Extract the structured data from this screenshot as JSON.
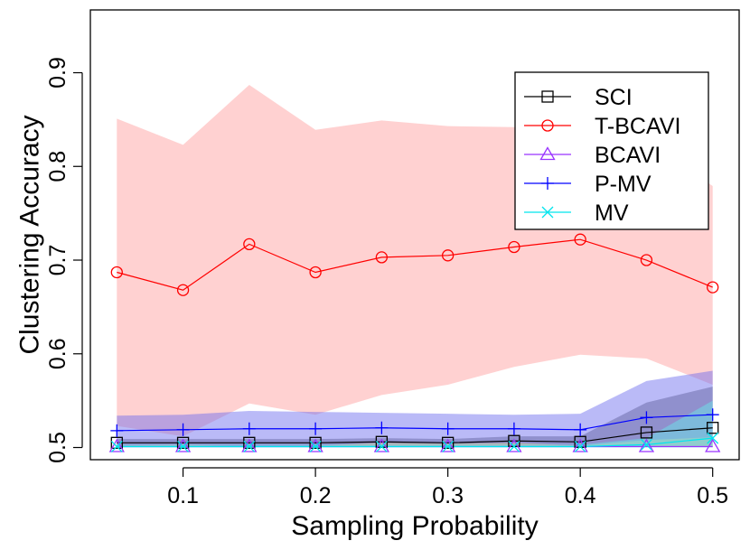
{
  "chart_data": {
    "type": "line",
    "xlabel": "Sampling Probability",
    "ylabel": "Clustering Accuracy",
    "xlim": [
      0.03,
      0.52
    ],
    "ylim": [
      0.487,
      0.967
    ],
    "xticks": [
      0.1,
      0.2,
      0.3,
      0.4,
      0.5
    ],
    "xtick_labels": [
      "0.1",
      "0.2",
      "0.3",
      "0.4",
      "0.5"
    ],
    "yticks": [
      0.5,
      0.6,
      0.7,
      0.8,
      0.9
    ],
    "ytick_labels": [
      "0.5",
      "0.6",
      "0.7",
      "0.8",
      "0.9"
    ],
    "legend_position": "top-right",
    "x": [
      0.05,
      0.1,
      0.15,
      0.2,
      0.25,
      0.3,
      0.35,
      0.4,
      0.45,
      0.5
    ],
    "series": [
      {
        "name": "SCI",
        "color": "#000000",
        "marker": "square",
        "values": [
          0.505,
          0.505,
          0.505,
          0.505,
          0.506,
          0.505,
          0.507,
          0.506,
          0.516,
          0.521
        ],
        "band_upper": [
          0.509,
          0.509,
          0.509,
          0.509,
          0.51,
          0.509,
          0.512,
          0.512,
          0.548,
          0.565
        ],
        "band_lower": [
          0.501,
          0.501,
          0.501,
          0.501,
          0.501,
          0.501,
          0.501,
          0.501,
          0.501,
          0.501
        ],
        "band_color": "#555555"
      },
      {
        "name": "T-BCAVI",
        "color": "#ff0000",
        "marker": "circle",
        "values": [
          0.687,
          0.668,
          0.717,
          0.687,
          0.703,
          0.705,
          0.714,
          0.722,
          0.7,
          0.671
        ],
        "band_upper": [
          0.851,
          0.823,
          0.887,
          0.839,
          0.849,
          0.843,
          0.842,
          0.842,
          0.828,
          0.779
        ],
        "band_lower": [
          0.523,
          0.512,
          0.547,
          0.535,
          0.556,
          0.567,
          0.586,
          0.599,
          0.595,
          0.567
        ],
        "band_color": "#ff9999"
      },
      {
        "name": "BCAVI",
        "color": "#9933ff",
        "marker": "triangle",
        "values": [
          0.501,
          0.501,
          0.501,
          0.501,
          0.501,
          0.501,
          0.501,
          0.501,
          0.501,
          0.501
        ],
        "band_upper": null,
        "band_lower": null,
        "band_color": "#9933ff"
      },
      {
        "name": "P-MV",
        "color": "#0000ff",
        "marker": "plus",
        "values": [
          0.518,
          0.519,
          0.52,
          0.52,
          0.521,
          0.52,
          0.52,
          0.519,
          0.532,
          0.535
        ],
        "band_upper": [
          0.534,
          0.535,
          0.539,
          0.538,
          0.537,
          0.536,
          0.535,
          0.536,
          0.571,
          0.582
        ],
        "band_lower": [
          0.502,
          0.503,
          0.501,
          0.502,
          0.505,
          0.504,
          0.505,
          0.502,
          0.508,
          0.511
        ],
        "band_color": "#6666ee"
      },
      {
        "name": "MV",
        "color": "#00e5ee",
        "marker": "cross",
        "values": [
          0.501,
          0.501,
          0.501,
          0.501,
          0.501,
          0.501,
          0.501,
          0.501,
          0.503,
          0.51
        ],
        "band_upper": [
          0.503,
          0.503,
          0.503,
          0.503,
          0.503,
          0.503,
          0.503,
          0.503,
          0.51,
          0.55
        ],
        "band_lower": [
          0.5,
          0.5,
          0.5,
          0.5,
          0.5,
          0.5,
          0.5,
          0.5,
          0.5,
          0.5
        ],
        "band_color": "#66eeee"
      }
    ]
  }
}
